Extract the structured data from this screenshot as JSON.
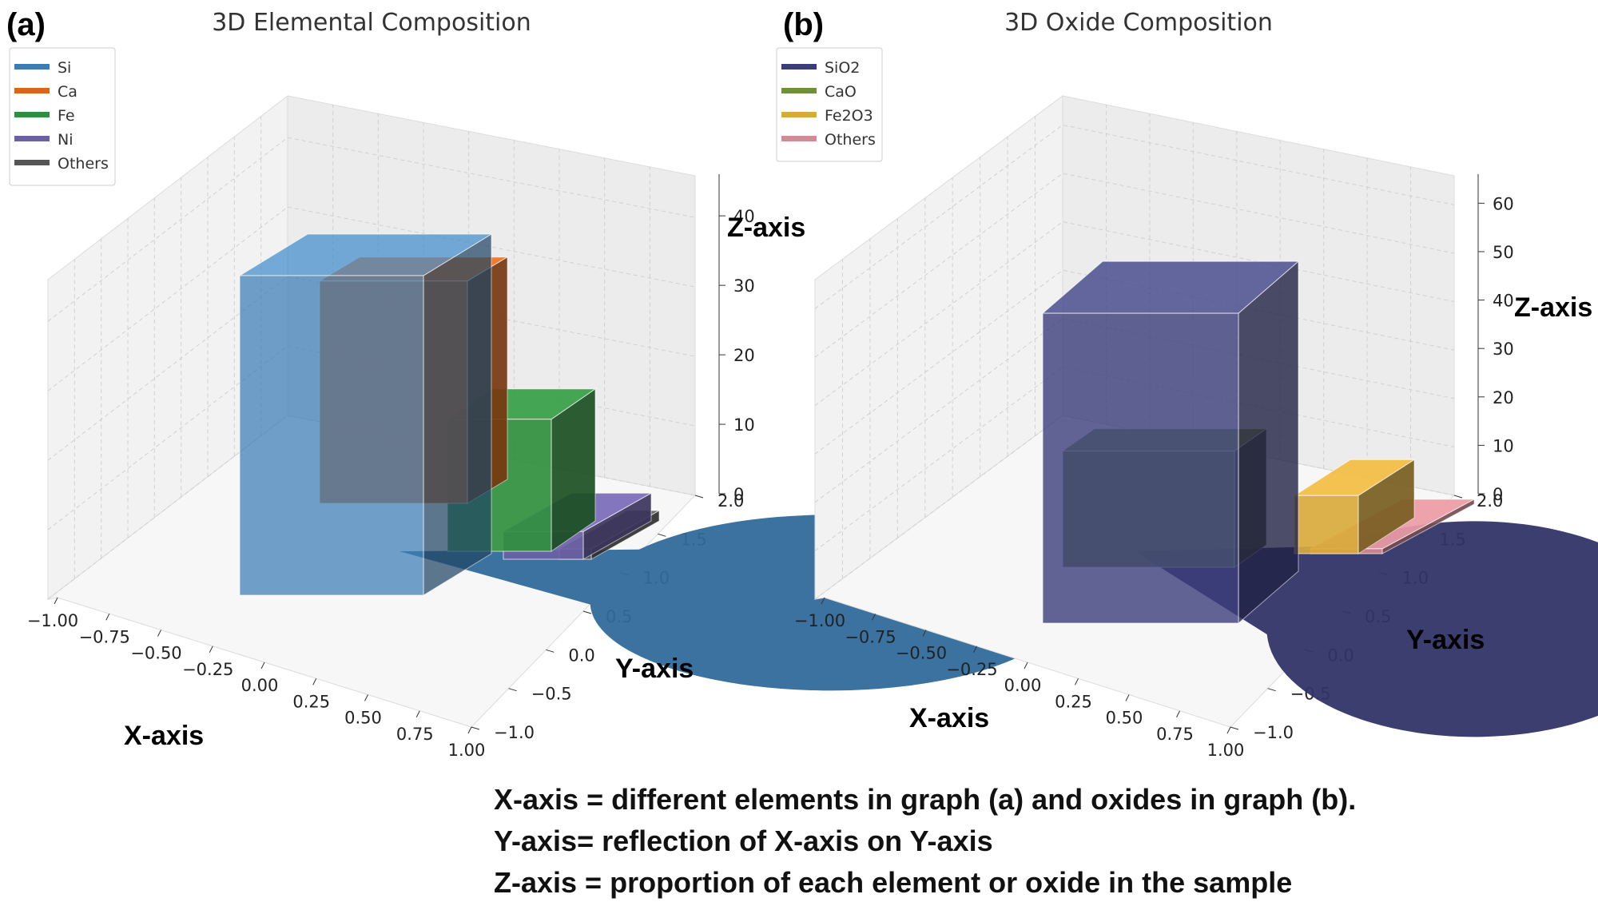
{
  "chart_data": [
    {
      "type": "bar",
      "panel_label": "(a)",
      "title": "3D Elemental Composition",
      "categories": [
        "Si",
        "Ca",
        "Fe",
        "Ni",
        "Others"
      ],
      "values": [
        46,
        32,
        19,
        4,
        1.5
      ],
      "colors": [
        "#3a7db5",
        "#d9651c",
        "#2f8f3d",
        "#6b5fa6",
        "#555555"
      ],
      "legend": [
        "Si",
        "Ca",
        "Fe",
        "Ni",
        "Others"
      ],
      "legend_position": "top-left",
      "xlabel": "X-axis",
      "ylabel": "Y-axis",
      "zlabel": "Z-axis",
      "xticks": [
        "−1.00",
        "−0.75",
        "−0.50",
        "−0.25",
        "0.00",
        "0.25",
        "0.50",
        "0.75",
        "1.00"
      ],
      "yticks": [
        "−1.0",
        "−0.5",
        "0.0",
        "0.5",
        "1.0",
        "1.5",
        "2.0"
      ],
      "zticks": [
        "0",
        "10",
        "20",
        "30",
        "40"
      ],
      "zlim": [
        0,
        46
      ]
    },
    {
      "type": "bar",
      "panel_label": "(b)",
      "title": "3D Oxide Composition",
      "categories": [
        "SiO2",
        "CaO",
        "Fe2O3",
        "Others"
      ],
      "values": [
        64,
        24,
        12,
        1
      ],
      "colors": [
        "#3a3d7a",
        "#6f8f3a",
        "#d9a93b",
        "#d48a93"
      ],
      "legend": [
        "SiO2",
        "CaO",
        "Fe2O3",
        "Others"
      ],
      "legend_position": "top-left",
      "xlabel": "X-axis",
      "ylabel": "Y-axis",
      "zlabel": "Z-axis",
      "xticks": [
        "−1.00",
        "−0.75",
        "−0.50",
        "−0.25",
        "0.00",
        "0.25",
        "0.50",
        "0.75",
        "1.00"
      ],
      "yticks": [
        "−1.0",
        "−0.5",
        "0.0",
        "0.5",
        "1.0",
        "1.5",
        "2.0"
      ],
      "zticks": [
        "0",
        "10",
        "20",
        "30",
        "40",
        "50",
        "60"
      ],
      "zlim": [
        0,
        66
      ]
    }
  ],
  "caption": {
    "line1": "X-axis = different elements in graph (a) and oxides in graph (b).",
    "line2": "Y-axis=  reflection of X-axis on Y-axis",
    "line3": "Z-axis = proportion of each element or oxide in the sample"
  }
}
